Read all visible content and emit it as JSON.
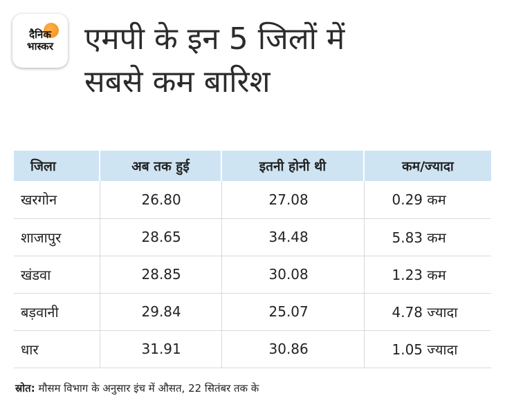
{
  "logo": {
    "line1": "दैनिक",
    "line2": "भास्कर"
  },
  "headline": {
    "line1": "एमपी के इन 5 जिलों में",
    "line2": "सबसे कम बारिश"
  },
  "table": {
    "headers": [
      "जिला",
      "अब तक हुई",
      "इतनी होनी थी",
      "कम/ज्यादा"
    ],
    "rows": [
      [
        "खरगोन",
        "26.80",
        "27.08",
        "0.29 कम"
      ],
      [
        "शाजापुर",
        "28.65",
        "34.48",
        "5.83 कम"
      ],
      [
        "खंडवा",
        "28.85",
        "30.08",
        "1.23 कम"
      ],
      [
        "बड़वानी",
        "29.84",
        "25.07",
        "4.78 ज्यादा"
      ],
      [
        "धार",
        "31.91",
        "30.86",
        "1.05 ज्यादा"
      ]
    ]
  },
  "source": {
    "label": "स्रोत:",
    "text": " मौसम विभाग के अनुसार इंच में औसत, 22 सितंबर तक के"
  }
}
